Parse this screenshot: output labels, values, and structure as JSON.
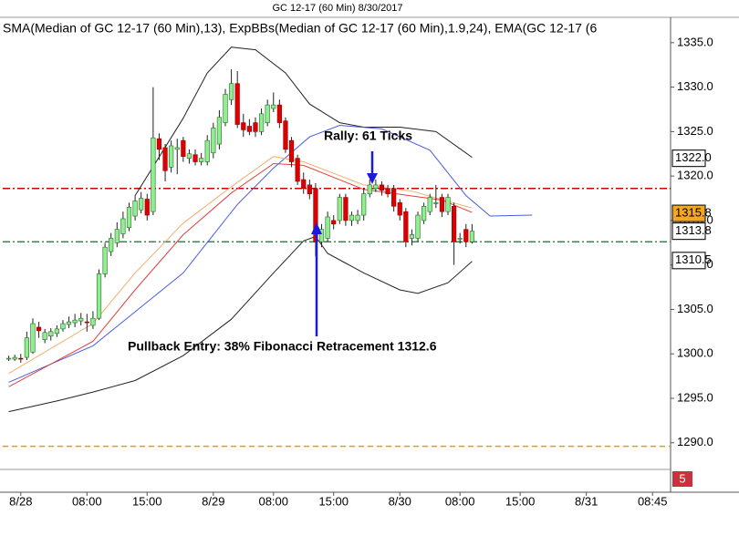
{
  "chart_data": {
    "type": "candlestick",
    "title": "GC 12-17 (60 Min)  8/30/2017",
    "subtitle": "SMA(Median of GC 12-17 (60 Min),13), ExpBBs(Median of GC 12-17 (60 Min),1.9,24), EMA(GC 12-17 (6",
    "up_color": "#90ee90",
    "down_color": "#dd0000",
    "open": [
      1299.5,
      1299.4,
      1299.5,
      1299.6,
      1300.2,
      1303.0,
      1301.6,
      1302.0,
      1302.3,
      1302.8,
      1303.3,
      1303.5,
      1303.7,
      1303.6,
      1303.2,
      1304.0,
      1309.0,
      1311.5,
      1312.5,
      1313.5,
      1314.2,
      1315.5,
      1316.2,
      1317.4,
      1316.0,
      1324.2,
      1323.2,
      1321.0,
      1323.0,
      1324.0,
      1322.0,
      1322.4,
      1321.6,
      1321.6,
      1322.6,
      1323.6,
      1326.0,
      1328.6,
      1330.4,
      1326.0,
      1325.6,
      1326.0,
      1325.0,
      1326.0,
      1327.6,
      1328.0,
      1326.2,
      1324.0,
      1322.0,
      1319.6,
      1319.0,
      1318.6,
      1312.6,
      1313.0,
      1315.0,
      1315.0,
      1317.6,
      1315.0,
      1315.0,
      1315.6,
      1318.0,
      1318.6,
      1319.0,
      1318.6,
      1318.6,
      1317.0,
      1316.0,
      1313.0,
      1313.0,
      1315.0,
      1316.0,
      1317.0,
      1317.6,
      1316.0,
      1316.6,
      1313.0,
      1314.0,
      1312.6
    ],
    "high": [
      1299.8,
      1299.9,
      1300.0,
      1302.5,
      1304.0,
      1303.6,
      1302.8,
      1302.9,
      1303.2,
      1303.8,
      1304.2,
      1304.5,
      1304.6,
      1304.5,
      1304.8,
      1309.5,
      1312.5,
      1313.6,
      1314.8,
      1316.0,
      1317.0,
      1317.8,
      1318.2,
      1318.0,
      1330.0,
      1324.8,
      1323.6,
      1324.0,
      1324.2,
      1324.4,
      1323.0,
      1323.0,
      1322.6,
      1324.6,
      1326.0,
      1327.4,
      1329.8,
      1332.0,
      1331.8,
      1327.0,
      1326.4,
      1326.6,
      1327.6,
      1328.6,
      1329.4,
      1328.6,
      1326.6,
      1324.4,
      1322.4,
      1320.4,
      1319.6,
      1319.2,
      1314.6,
      1316.0,
      1315.6,
      1318.0,
      1318.0,
      1316.0,
      1316.2,
      1318.6,
      1319.6,
      1319.6,
      1319.4,
      1319.0,
      1319.0,
      1317.4,
      1316.4,
      1314.0,
      1316.0,
      1317.0,
      1318.0,
      1319.0,
      1318.0,
      1318.0,
      1317.0,
      1313.6,
      1314.6,
      1314.6
    ],
    "low": [
      1299.2,
      1299.2,
      1299.0,
      1299.3,
      1300.0,
      1301.8,
      1301.2,
      1301.5,
      1301.9,
      1302.5,
      1302.9,
      1303.0,
      1303.2,
      1302.5,
      1302.8,
      1303.8,
      1308.6,
      1311.0,
      1312.0,
      1313.0,
      1313.8,
      1315.0,
      1315.8,
      1315.0,
      1315.6,
      1321.8,
      1319.4,
      1320.4,
      1320.2,
      1321.6,
      1321.4,
      1321.2,
      1321.2,
      1321.2,
      1322.0,
      1323.0,
      1325.6,
      1328.0,
      1325.4,
      1324.4,
      1324.6,
      1324.4,
      1324.6,
      1325.6,
      1327.2,
      1325.4,
      1322.6,
      1321.0,
      1319.0,
      1318.0,
      1317.4,
      1311.0,
      1312.0,
      1312.6,
      1314.0,
      1314.6,
      1314.4,
      1314.4,
      1314.6,
      1315.0,
      1317.6,
      1318.2,
      1317.8,
      1317.6,
      1316.0,
      1315.0,
      1312.0,
      1312.2,
      1312.6,
      1314.6,
      1315.6,
      1316.4,
      1315.4,
      1315.6,
      1310.0,
      1312.4,
      1312.0,
      1312.4
    ],
    "close": [
      1299.5,
      1299.6,
      1299.4,
      1301.8,
      1303.4,
      1302.6,
      1302.4,
      1302.5,
      1302.8,
      1303.4,
      1303.6,
      1303.8,
      1304.0,
      1303.5,
      1304.0,
      1309.0,
      1312.0,
      1313.0,
      1314.0,
      1315.2,
      1316.5,
      1317.2,
      1317.5,
      1315.6,
      1324.3,
      1323.0,
      1320.6,
      1323.4,
      1323.2,
      1322.2,
      1322.5,
      1321.6,
      1322.0,
      1324.0,
      1325.4,
      1326.6,
      1329.2,
      1330.4,
      1325.8,
      1325.2,
      1325.0,
      1325.0,
      1327.0,
      1328.0,
      1328.0,
      1326.0,
      1323.0,
      1321.6,
      1319.4,
      1318.6,
      1318.0,
      1312.6,
      1314.0,
      1315.4,
      1314.6,
      1317.6,
      1315.0,
      1315.6,
      1315.6,
      1318.0,
      1319.0,
      1319.0,
      1318.4,
      1318.0,
      1316.6,
      1315.6,
      1312.6,
      1313.4,
      1315.6,
      1316.6,
      1317.6,
      1317.0,
      1316.0,
      1317.6,
      1312.6,
      1313.0,
      1312.6,
      1313.8
    ],
    "lines": [
      {
        "color": "#222222",
        "x": [
          21,
          29,
          33,
          37,
          41,
          46,
          50,
          55,
          59,
          65,
          71,
          77
        ],
        "values": [
          1317.8,
          1326.5,
          1331.6,
          1334.5,
          1334.2,
          1331.6,
          1328.1,
          1326.0,
          1325.5,
          1325.5,
          1325.0,
          1322.1
        ]
      },
      {
        "color": "#222222",
        "x": [
          0,
          8,
          14,
          21,
          29,
          37,
          44,
          49,
          51,
          53,
          59,
          65,
          68,
          73,
          77
        ],
        "values": [
          1293.5,
          1294.7,
          1295.7,
          1297.0,
          1299.8,
          1303.9,
          1309.1,
          1312.7,
          1313.2,
          1311.3,
          1309.1,
          1307.2,
          1306.8,
          1308.0,
          1310.4
        ]
      },
      {
        "color": "#4a5de0",
        "x": [
          0,
          14,
          29,
          38,
          44,
          50,
          55,
          62,
          70,
          76,
          80,
          87
        ],
        "values": [
          1296.8,
          1300.9,
          1309.1,
          1316.8,
          1320.9,
          1324.4,
          1325.7,
          1325.3,
          1322.9,
          1317.8,
          1315.5,
          1315.6
        ]
      },
      {
        "color": "#f0b070",
        "x": [
          0,
          14,
          21,
          29,
          37,
          44,
          49,
          54,
          59,
          67,
          77
        ],
        "values": [
          1297.8,
          1303.4,
          1309.1,
          1314.7,
          1318.8,
          1322.2,
          1321.6,
          1320.3,
          1319.0,
          1318.3,
          1316.4
        ]
      },
      {
        "color": "#e04040",
        "x": [
          0,
          14,
          21,
          29,
          37,
          44,
          49,
          59,
          72,
          77
        ],
        "values": [
          1296.3,
          1301.4,
          1307.2,
          1313.4,
          1318.1,
          1321.4,
          1321.2,
          1318.5,
          1317.3,
          1315.9
        ]
      }
    ],
    "levels": [
      {
        "value": 1318.6,
        "color": "#cc0000",
        "dash": "8 3 2 3"
      },
      {
        "value": 1312.6,
        "color": "#2e8b57",
        "dash": "8 3 2 3"
      },
      {
        "value": 1289.6,
        "color": "#e8a000",
        "dash": "6 4"
      }
    ],
    "price_labels": [
      {
        "value": 1322.0,
        "label": "1322.0",
        "color": "#ffffff"
      },
      {
        "value": 1315.8,
        "label": "1315.8",
        "color": "#f5a623"
      },
      {
        "value": 1313.8,
        "label": "1313.8",
        "color": "#ffffff"
      },
      {
        "value": 1310.5,
        "label": "1310.5",
        "color": "#ffffff"
      }
    ],
    "annotations": [
      {
        "text": "Rally: 61 Ticks"
      },
      {
        "text": "Pullback Entry: 38% Fibonacci Retracement 1312.6"
      }
    ],
    "badge": 5,
    "xlim": [
      -1,
      110
    ],
    "xticks": [
      {
        "value": 2,
        "label": "8/28"
      },
      {
        "value": 13,
        "label": "08:00"
      },
      {
        "value": 23,
        "label": "15:00"
      },
      {
        "value": 34,
        "label": "8/29"
      },
      {
        "value": 44,
        "label": "08:00"
      },
      {
        "value": 54,
        "label": "15:00"
      },
      {
        "value": 65,
        "label": "8/30"
      },
      {
        "value": 75,
        "label": "08:00"
      },
      {
        "value": 85,
        "label": "15:00"
      },
      {
        "value": 96,
        "label": "8/31"
      },
      {
        "value": 107,
        "label": "08:45"
      }
    ],
    "ylim": [
      1287,
      1335.7
    ],
    "yticks": [
      {
        "value": 1290,
        "label": "1290.0"
      },
      {
        "value": 1295,
        "label": "1295.0"
      },
      {
        "value": 1300,
        "label": "1300.0"
      },
      {
        "value": 1305,
        "label": "1305.0"
      },
      {
        "value": 1310,
        "label": "1310.0"
      },
      {
        "value": 1315,
        "label": "1315.0"
      },
      {
        "value": 1320,
        "label": "1320.0"
      },
      {
        "value": 1325,
        "label": "1325.0"
      },
      {
        "value": 1330,
        "label": "1330.0"
      },
      {
        "value": 1335,
        "label": "1335.0"
      }
    ]
  }
}
